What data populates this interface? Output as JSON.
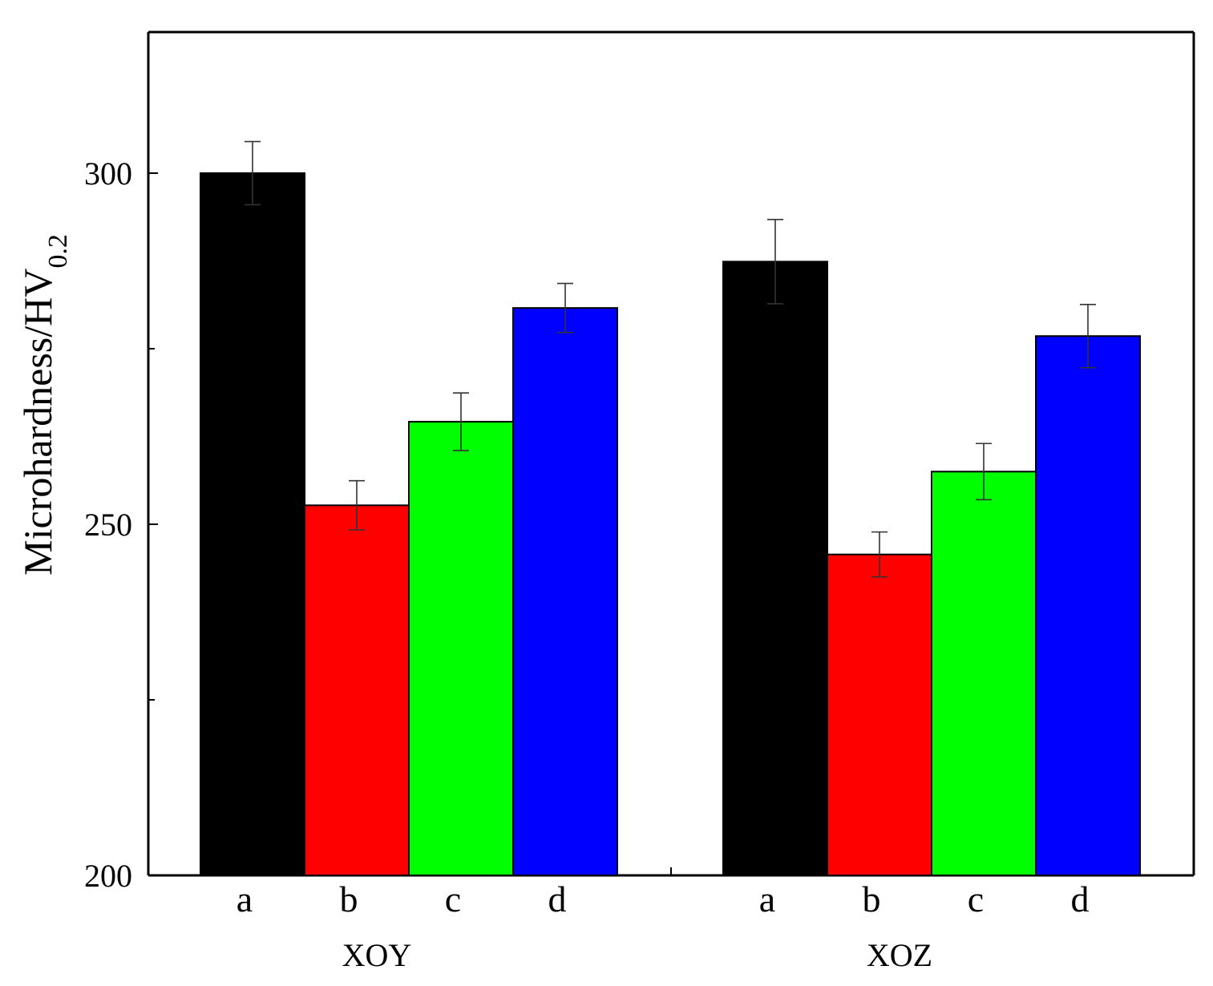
{
  "chart_data": {
    "type": "bar",
    "title": "",
    "xlabel": "",
    "ylabel": "Microhardness/HV",
    "ylabel_subscript": "0.2",
    "ylim": [
      200,
      300
    ],
    "yticks": [
      200,
      250,
      300
    ],
    "groups": [
      {
        "name": "XOY",
        "bars": [
          {
            "category": "a",
            "value": 300,
            "error": 4.5,
            "color": "#000000"
          },
          {
            "category": "b",
            "value": 252.7,
            "error": 3.5,
            "color": "#ff0000"
          },
          {
            "category": "c",
            "value": 264.6,
            "error": 4.1,
            "color": "#00ff00"
          },
          {
            "category": "d",
            "value": 280.8,
            "error": 3.5,
            "color": "#0000ff"
          }
        ]
      },
      {
        "name": "XOZ",
        "bars": [
          {
            "category": "a",
            "value": 287.4,
            "error": 6.0,
            "color": "#000000"
          },
          {
            "category": "b",
            "value": 245.7,
            "error": 3.2,
            "color": "#ff0000"
          },
          {
            "category": "c",
            "value": 257.5,
            "error": 4.0,
            "color": "#00ff00"
          },
          {
            "category": "d",
            "value": 276.8,
            "error": 4.5,
            "color": "#0000ff"
          }
        ]
      }
    ]
  }
}
